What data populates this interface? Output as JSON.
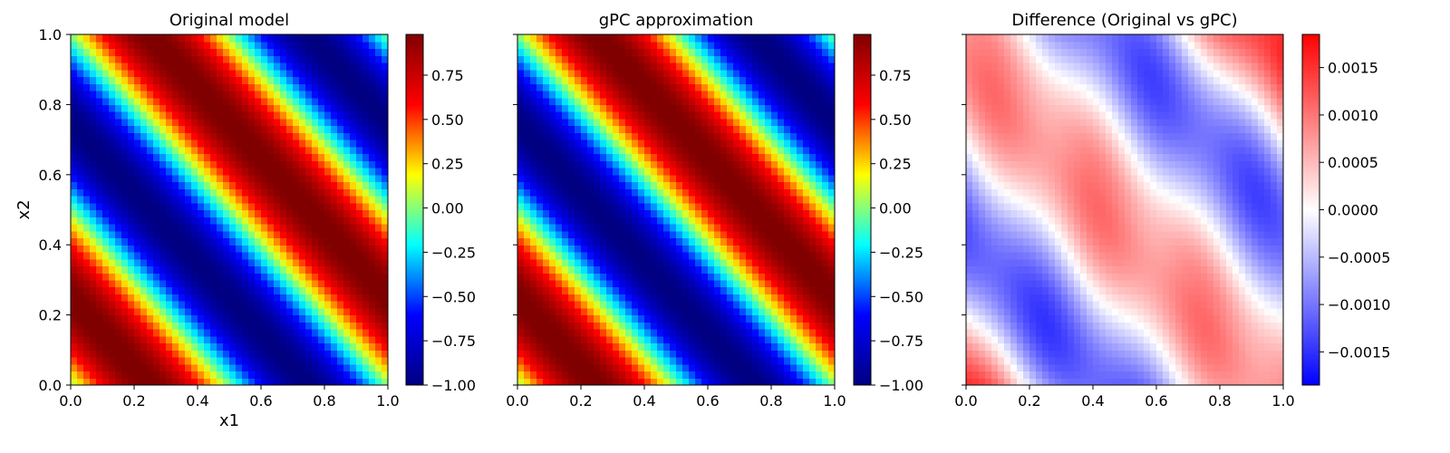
{
  "chart_data": [
    {
      "type": "heatmap",
      "title": "Original model",
      "xlabel": "x1",
      "ylabel": "x2",
      "xlim": [
        0.0,
        1.0
      ],
      "ylim": [
        0.0,
        1.0
      ],
      "xticks": [
        "0.0",
        "0.2",
        "0.4",
        "0.6",
        "0.8",
        "1.0"
      ],
      "yticks": [
        "0.0",
        "0.2",
        "0.4",
        "0.6",
        "0.8",
        "1.0"
      ],
      "grid_n": 50,
      "field": "sin(2*pi*(x1 + x2))",
      "colormap": "jet",
      "clim": [
        -1.0,
        0.98
      ],
      "colorbar_ticks": [
        "0.75",
        "0.50",
        "0.25",
        "0.00",
        "−0.25",
        "−0.50",
        "−0.75",
        "−1.00"
      ],
      "colorbar_values": [
        0.75,
        0.5,
        0.25,
        0.0,
        -0.25,
        -0.5,
        -0.75,
        -1.0
      ]
    },
    {
      "type": "heatmap",
      "title": "gPC approximation",
      "xlabel": "",
      "ylabel": "",
      "xlim": [
        0.0,
        1.0
      ],
      "ylim": [
        0.0,
        1.0
      ],
      "xticks": [
        "0.0",
        "0.2",
        "0.4",
        "0.6",
        "0.8",
        "1.0"
      ],
      "yticks": [],
      "grid_n": 50,
      "field": "sin(2*pi*(x1 + x2))",
      "colormap": "jet",
      "clim": [
        -1.0,
        0.98
      ],
      "colorbar_ticks": [
        "0.75",
        "0.50",
        "0.25",
        "0.00",
        "−0.25",
        "−0.50",
        "−0.75",
        "−1.00"
      ],
      "colorbar_values": [
        0.75,
        0.5,
        0.25,
        0.0,
        -0.25,
        -0.5,
        -0.75,
        -1.0
      ]
    },
    {
      "type": "heatmap",
      "title": "Difference (Original vs gPC)",
      "xlabel": "",
      "ylabel": "",
      "xlim": [
        0.0,
        1.0
      ],
      "ylim": [
        0.0,
        1.0
      ],
      "xticks": [
        "0.0",
        "0.2",
        "0.4",
        "0.6",
        "0.8",
        "1.0"
      ],
      "yticks": [],
      "grid_n": 50,
      "field": "approximation error (original minus gPC)",
      "colormap": "bwr",
      "clim": [
        -0.00185,
        0.00185
      ],
      "colorbar_ticks": [
        "0.0015",
        "0.0010",
        "0.0005",
        "0.0000",
        "−0.0005",
        "−0.0010",
        "−0.0015"
      ],
      "colorbar_values": [
        0.0015,
        0.001,
        0.0005,
        0.0,
        -0.0005,
        -0.001,
        -0.0015
      ]
    }
  ],
  "colors": {
    "jet_stops": [
      "#000080",
      "#0000ff",
      "#00ffff",
      "#ffff00",
      "#ff0000",
      "#800000"
    ],
    "bwr_stops": [
      "#0000ff",
      "#ffffff",
      "#ff0000"
    ],
    "axis": "#000000",
    "background": "#ffffff"
  }
}
